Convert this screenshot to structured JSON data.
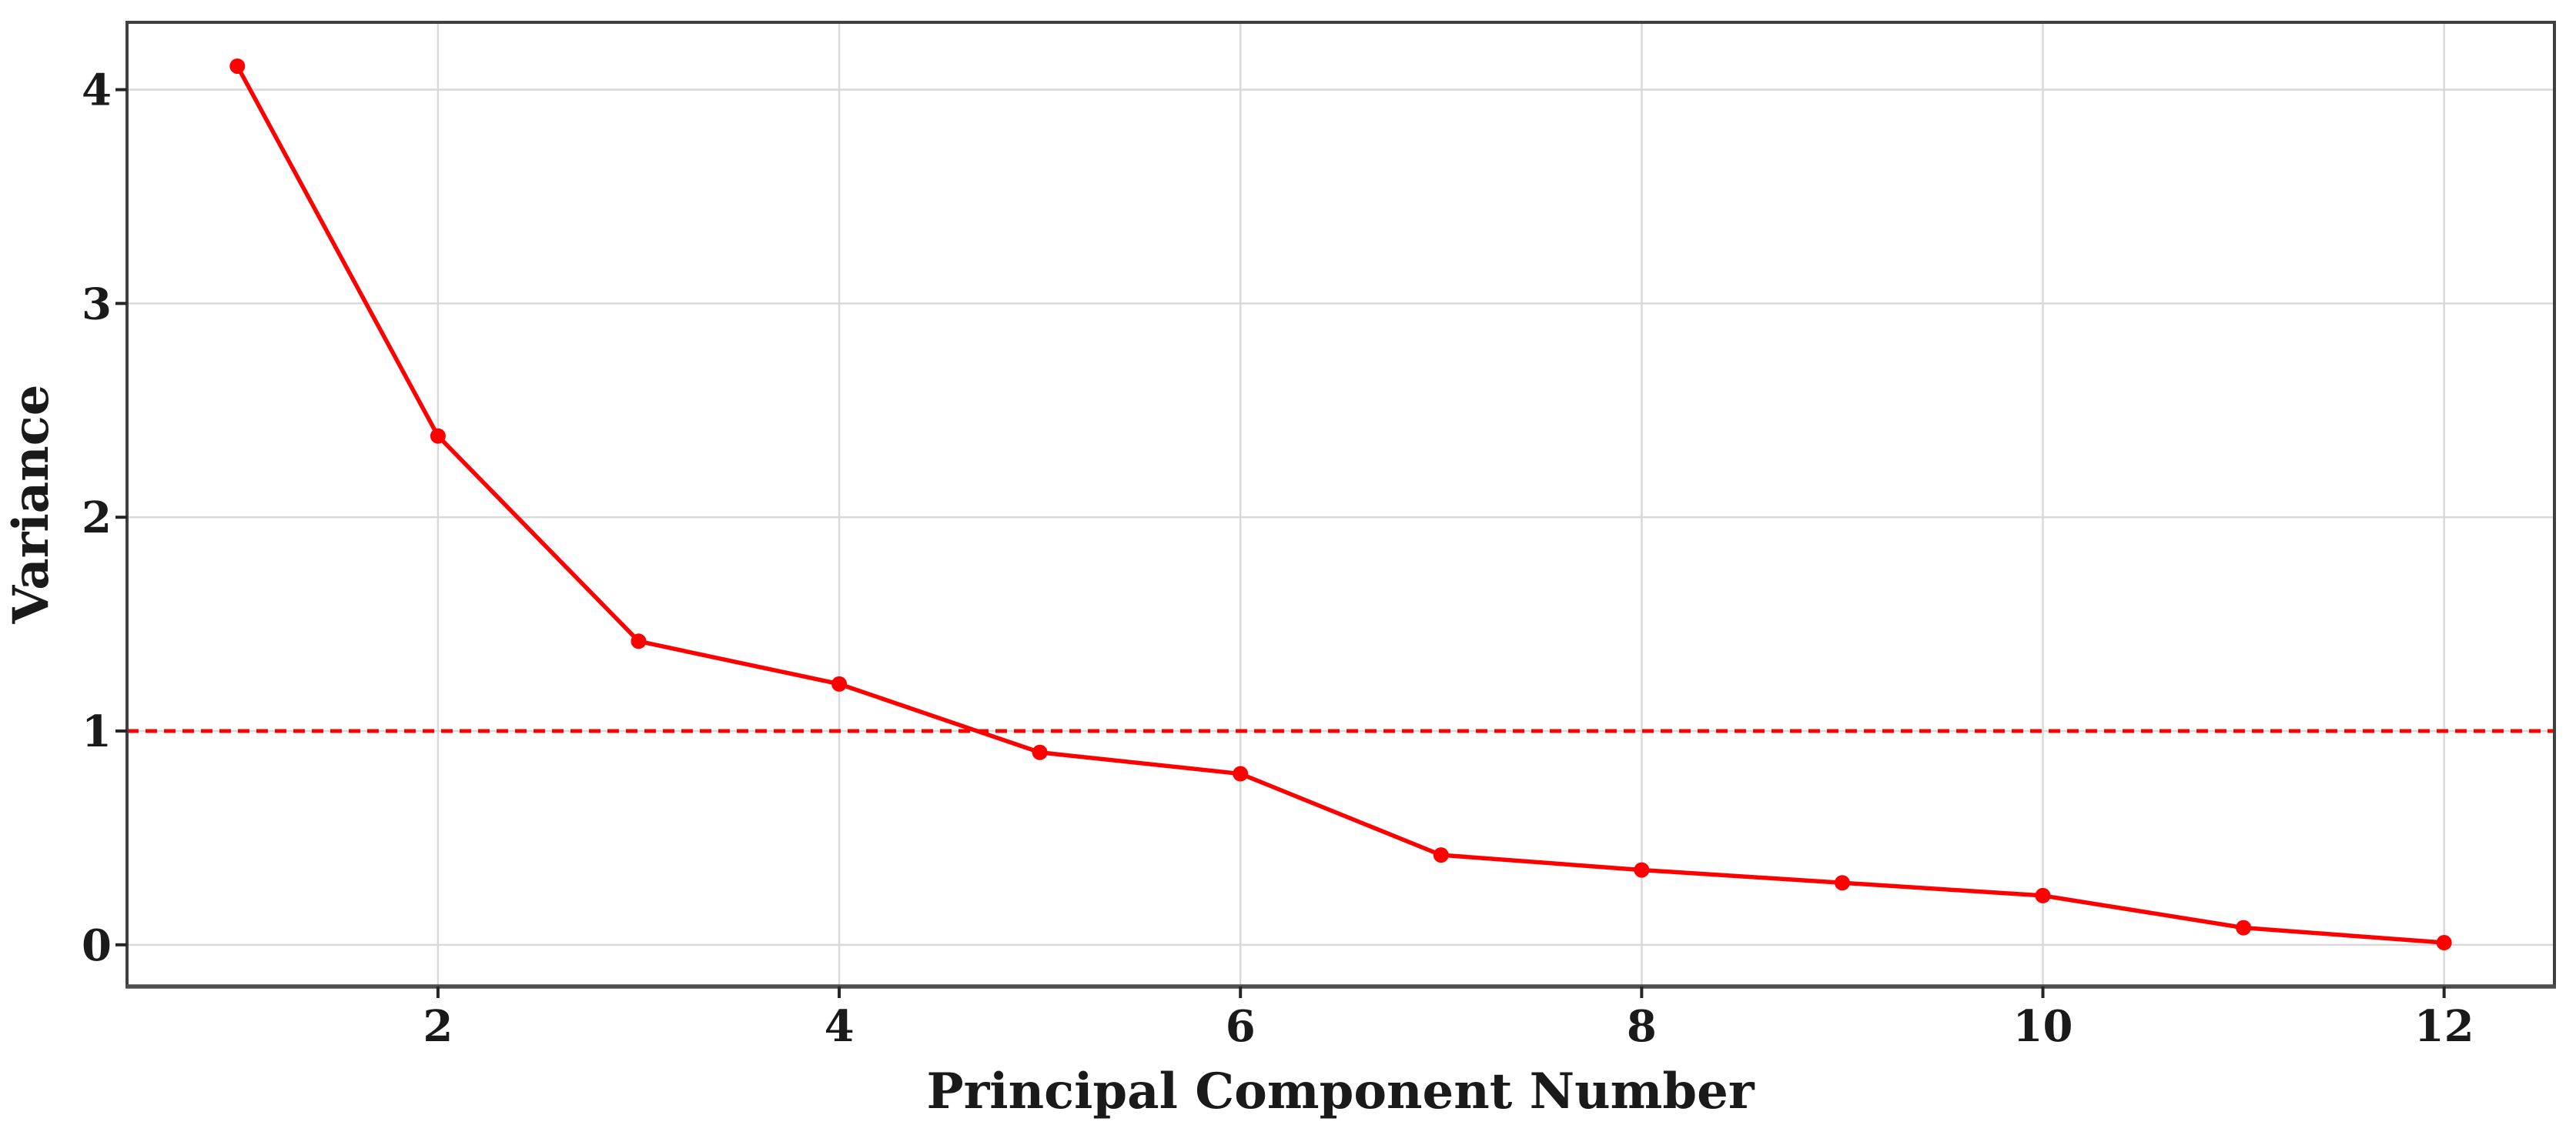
{
  "chart_data": {
    "type": "line",
    "title": "",
    "xlabel": "Principal Component Number",
    "ylabel": "Variance",
    "x": [
      1,
      2,
      3,
      4,
      5,
      6,
      7,
      8,
      9,
      10,
      11,
      12
    ],
    "values": [
      4.11,
      2.38,
      1.42,
      1.22,
      0.9,
      0.8,
      0.42,
      0.35,
      0.29,
      0.23,
      0.08,
      0.01
    ],
    "xticks": [
      2,
      4,
      6,
      8,
      10,
      12
    ],
    "yticks": [
      0,
      1,
      2,
      3,
      4
    ],
    "xtick_labels": [
      "2",
      "4",
      "6",
      "8",
      "10",
      "12"
    ],
    "ytick_labels": [
      "0",
      "1",
      "2",
      "3",
      "4"
    ],
    "xlim": [
      0.45,
      12.55
    ],
    "ylim": [
      -0.195,
      4.315
    ],
    "grid": true,
    "legend_position": "none",
    "marker": "circle",
    "line_style": "solid",
    "threshold_line": {
      "y": 1,
      "style": "dashed",
      "color": "#ff0000"
    },
    "colors": {
      "series": "#ff0000",
      "threshold": "#ff0000",
      "grid": "#d9d9d9",
      "spine": "#404040",
      "bottom_spine": "#4d4d4d",
      "tick": "#262626",
      "text": "#1a1a1a",
      "background": "#ffffff"
    }
  }
}
